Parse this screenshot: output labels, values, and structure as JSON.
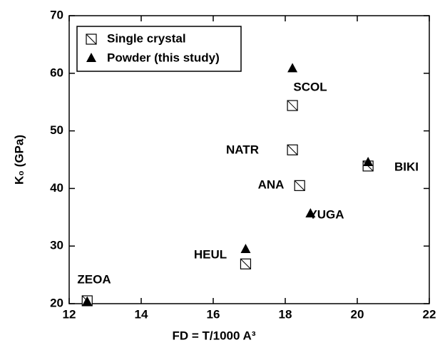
{
  "chart_data": {
    "type": "scatter",
    "x_label": "FD = T/1000 A³",
    "y_label": "K₀ (GPa)",
    "xlim": [
      12,
      22
    ],
    "xticks": [
      12,
      14,
      16,
      18,
      20,
      22
    ],
    "ylim": [
      20,
      70
    ],
    "yticks": [
      20,
      30,
      40,
      50,
      60,
      70
    ],
    "legend": "upper left",
    "series": [
      {
        "name": "Single crystal",
        "marker": "square",
        "color": "#000000",
        "x": [
          12.5,
          18.2,
          18.2,
          18.4,
          20.3,
          16.9
        ],
        "values": [
          20.5,
          54.4,
          46.7,
          40.5,
          43.9,
          26.9
        ]
      },
      {
        "name": "Powder (this study)",
        "marker": "triangle",
        "color": "#000000",
        "x": [
          12.5,
          18.2,
          20.3,
          18.7,
          16.9
        ],
        "values": [
          20.3,
          60.8,
          44.5,
          35.6,
          29.4
        ]
      }
    ],
    "annotations": [
      "ZEOA",
      "SCOL",
      "NATR",
      "ANA",
      "BIKI",
      "YUGA",
      "HEUL"
    ]
  }
}
